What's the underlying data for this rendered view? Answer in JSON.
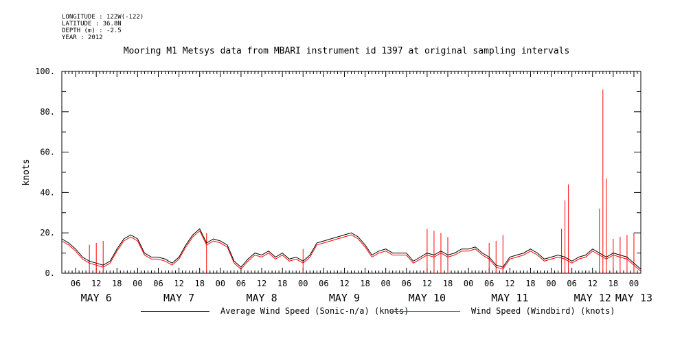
{
  "header": {
    "longitude": "LONGITUDE : 122W(-122)",
    "latitude": "LATITUDE : 36.8N",
    "depth": "DEPTH (m) : -2.5",
    "year": "YEAR : 2012"
  },
  "chart_data": {
    "type": "line",
    "title": "Mooring M1 Metsys data from MBARI instrument id 1397 at original sampling intervals",
    "ylabel": "knots",
    "xlabel": "",
    "ylim": [
      0,
      100
    ],
    "y_ticks": [
      0,
      20,
      40,
      60,
      80,
      100
    ],
    "y_tick_labels": [
      "0.",
      "20.",
      "40.",
      "60.",
      "80.",
      "100."
    ],
    "xlim_hours": [
      2,
      170
    ],
    "x_tick_hours": [
      6,
      12,
      18,
      24,
      30,
      36,
      42,
      48,
      54,
      60,
      66,
      72,
      78,
      84,
      90,
      96,
      102,
      108,
      114,
      120,
      126,
      132,
      138,
      144,
      150,
      156,
      162,
      168
    ],
    "x_tick_labels": [
      "06",
      "12",
      "18",
      "00",
      "06",
      "12",
      "18",
      "00",
      "06",
      "12",
      "18",
      "00",
      "06",
      "12",
      "18",
      "00",
      "06",
      "12",
      "18",
      "00",
      "06",
      "12",
      "18",
      "00",
      "06",
      "12",
      "18",
      "00"
    ],
    "day_labels": [
      {
        "label": "MAY  6",
        "hour": 12
      },
      {
        "label": "MAY  7",
        "hour": 36
      },
      {
        "label": "MAY  8",
        "hour": 60
      },
      {
        "label": "MAY  9",
        "hour": 84
      },
      {
        "label": "MAY 10",
        "hour": 108
      },
      {
        "label": "MAY 11",
        "hour": 132
      },
      {
        "label": "MAY 12",
        "hour": 156
      },
      {
        "label": "MAY 13",
        "hour": 168
      }
    ],
    "series": [
      {
        "name": "Average Wind Speed (Sonic-n/a) (knots)",
        "color": "#000000",
        "x": [
          2,
          4,
          6,
          8,
          10,
          12,
          14,
          16,
          18,
          20,
          22,
          24,
          26,
          28,
          30,
          32,
          34,
          36,
          38,
          40,
          42,
          44,
          46,
          48,
          50,
          52,
          54,
          56,
          58,
          60,
          62,
          64,
          66,
          68,
          70,
          72,
          74,
          76,
          78,
          80,
          82,
          84,
          86,
          88,
          90,
          92,
          94,
          96,
          98,
          100,
          102,
          104,
          106,
          108,
          110,
          112,
          114,
          116,
          118,
          120,
          122,
          124,
          126,
          128,
          130,
          132,
          134,
          136,
          138,
          140,
          142,
          144,
          146,
          148,
          150,
          152,
          154,
          156,
          158,
          160,
          162,
          164,
          166,
          168,
          170
        ],
        "y": [
          17,
          15,
          12,
          8,
          6,
          5,
          4,
          6,
          12,
          17,
          19,
          17,
          10,
          8,
          8,
          7,
          5,
          8,
          14,
          19,
          22,
          15,
          17,
          16,
          14,
          6,
          3,
          7,
          10,
          9,
          11,
          8,
          10,
          7,
          8,
          6,
          9,
          15,
          16,
          17,
          18,
          19,
          20,
          18,
          14,
          9,
          11,
          12,
          10,
          10,
          10,
          6,
          8,
          10,
          9,
          11,
          9,
          10,
          12,
          12,
          13,
          10,
          8,
          4,
          3,
          8,
          9,
          10,
          12,
          10,
          7,
          8,
          9,
          8,
          6,
          8,
          9,
          12,
          10,
          8,
          10,
          9,
          8,
          5,
          2
        ]
      },
      {
        "name": "Wind Speed (Windbird) (knots)",
        "color": "#ff0000",
        "x": [
          2,
          4,
          6,
          8,
          10,
          12,
          14,
          16,
          18,
          20,
          22,
          24,
          26,
          28,
          30,
          32,
          34,
          36,
          38,
          40,
          42,
          44,
          46,
          48,
          50,
          52,
          54,
          56,
          58,
          60,
          62,
          64,
          66,
          68,
          70,
          72,
          74,
          76,
          78,
          80,
          82,
          84,
          86,
          88,
          90,
          92,
          94,
          96,
          98,
          100,
          102,
          104,
          106,
          108,
          110,
          112,
          114,
          116,
          118,
          120,
          122,
          124,
          126,
          128,
          130,
          132,
          134,
          136,
          138,
          140,
          142,
          144,
          146,
          148,
          150,
          152,
          154,
          156,
          158,
          160,
          162,
          164,
          166,
          168,
          170
        ],
        "y": [
          16,
          14,
          11,
          7,
          5,
          4,
          3,
          5,
          11,
          16,
          18,
          16,
          9,
          7,
          7,
          6,
          4,
          7,
          13,
          18,
          21,
          14,
          16,
          15,
          13,
          5,
          2,
          6,
          9,
          8,
          10,
          7,
          9,
          6,
          7,
          5,
          8,
          14,
          15,
          16,
          17,
          18,
          19,
          17,
          13,
          8,
          10,
          11,
          9,
          9,
          9,
          5,
          7,
          9,
          8,
          10,
          8,
          9,
          11,
          11,
          12,
          9,
          7,
          3,
          2,
          7,
          8,
          9,
          11,
          9,
          6,
          7,
          8,
          7,
          5,
          7,
          8,
          11,
          9,
          7,
          9,
          8,
          7,
          4,
          1
        ],
        "spikes": [
          {
            "x": 10,
            "y": 14
          },
          {
            "x": 12,
            "y": 15
          },
          {
            "x": 14,
            "y": 16
          },
          {
            "x": 44,
            "y": 20
          },
          {
            "x": 72,
            "y": 12
          },
          {
            "x": 108,
            "y": 22
          },
          {
            "x": 110,
            "y": 21
          },
          {
            "x": 112,
            "y": 20
          },
          {
            "x": 114,
            "y": 18
          },
          {
            "x": 126,
            "y": 15
          },
          {
            "x": 128,
            "y": 16
          },
          {
            "x": 130,
            "y": 19
          },
          {
            "x": 147,
            "y": 22
          },
          {
            "x": 148,
            "y": 36
          },
          {
            "x": 149,
            "y": 44
          },
          {
            "x": 158,
            "y": 32
          },
          {
            "x": 159,
            "y": 91
          },
          {
            "x": 160,
            "y": 47
          },
          {
            "x": 162,
            "y": 17
          },
          {
            "x": 164,
            "y": 18
          },
          {
            "x": 166,
            "y": 19
          },
          {
            "x": 168,
            "y": 20
          }
        ]
      }
    ],
    "grid": false,
    "legend_position": "bottom"
  }
}
